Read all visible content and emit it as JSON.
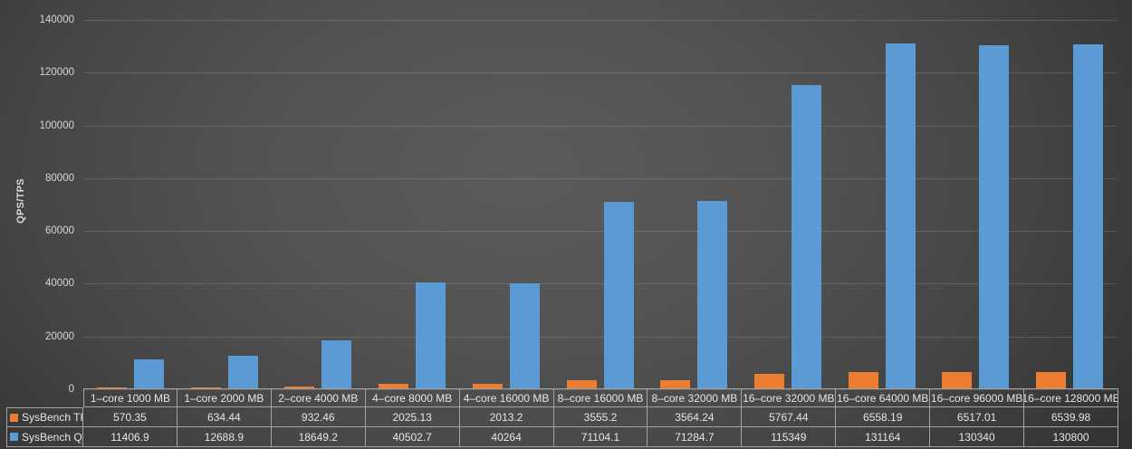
{
  "chart_data": {
    "type": "bar",
    "title": "",
    "xlabel": "",
    "ylabel": "QPS/TPS",
    "ylim": [
      0,
      140000
    ],
    "yticks": [
      0,
      20000,
      40000,
      60000,
      80000,
      100000,
      120000,
      140000
    ],
    "grid": true,
    "legend_position": "table-left",
    "categories": [
      "1–core 1000 MB",
      "1–core 2000 MB",
      "2–core 4000 MB",
      "4–core 8000 MB",
      "4–core 16000 MB",
      "8–core 16000 MB",
      "8–core 32000 MB",
      "16–core 32000 MB",
      "16–core 64000 MB",
      "16–core 96000 MB",
      "16–core 128000 MB"
    ],
    "series": [
      {
        "name": "SysBench TPS",
        "color": "#ED7D31",
        "values": [
          570.35,
          634.44,
          932.46,
          2025.13,
          2013.2,
          3555.2,
          3564.24,
          5767.44,
          6558.19,
          6517.01,
          6539.98
        ]
      },
      {
        "name": "SysBench QPS",
        "color": "#5B9BD5",
        "values": [
          11406.9,
          12688.9,
          18649.2,
          40502.7,
          40264,
          71104.1,
          71284.7,
          115349,
          131164,
          130340,
          130800
        ]
      }
    ]
  },
  "colors": {
    "tps_orange": "#ED7D31",
    "qps_blue": "#5B9BD5",
    "tick_text": "#d6d6d6",
    "table_text": "#e6e6e6",
    "table_border": "#a3a3a3"
  }
}
